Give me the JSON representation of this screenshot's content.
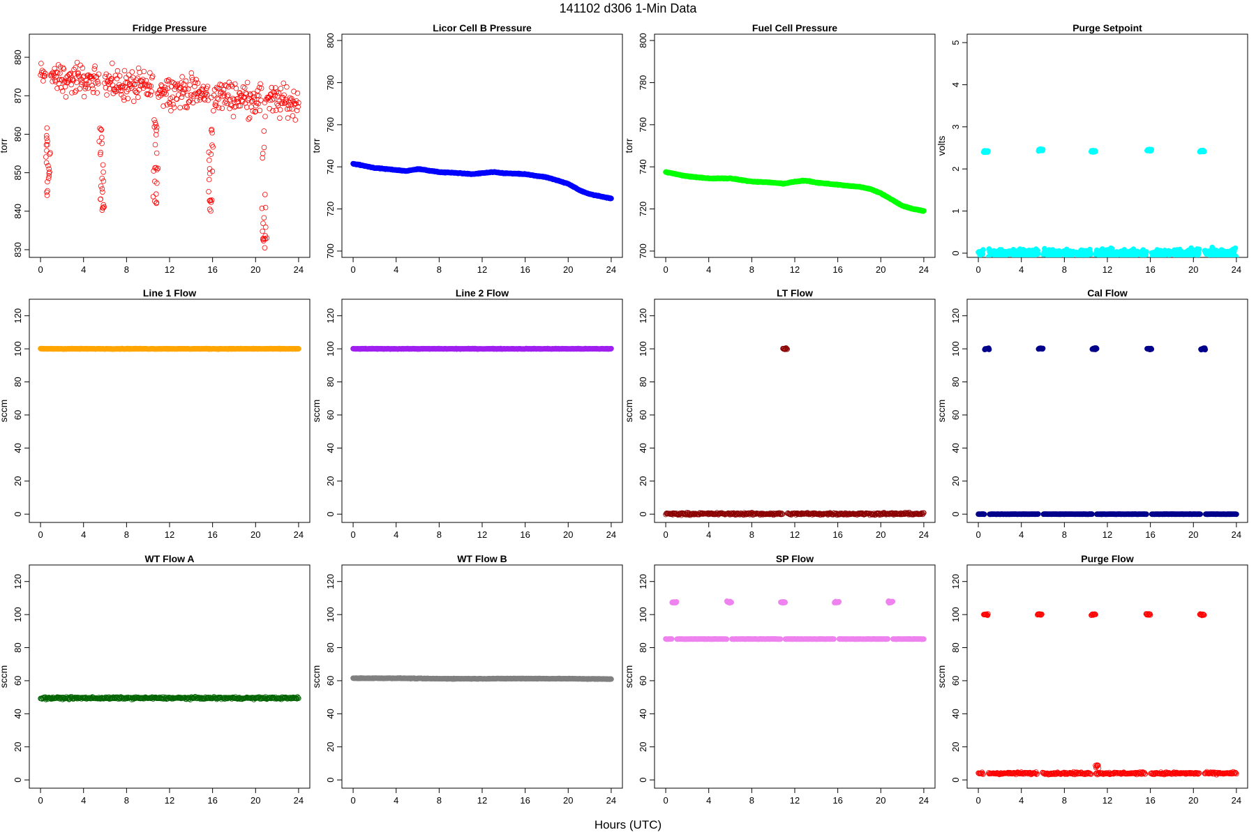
{
  "figure": {
    "title": "141102   d306   1-Min Data",
    "xlabel": "Hours (UTC)"
  },
  "chart_data": [
    {
      "type": "scatter",
      "title": "Fridge Pressure",
      "ylabel": "torr",
      "color": "#ff0000",
      "marker": "open-circle",
      "xlim": [
        0,
        24
      ],
      "ylim": [
        828,
        886
      ],
      "xticks": [
        0,
        4,
        8,
        12,
        16,
        20,
        24
      ],
      "yticks": [
        830,
        840,
        850,
        860,
        870,
        880
      ],
      "grid": false,
      "pattern": {
        "kind": "noisy-band",
        "base_start": 875,
        "base_end": 868,
        "spread": 6,
        "dips": [
          {
            "x": 0.7,
            "min": 843
          },
          {
            "x": 5.7,
            "min": 840
          },
          {
            "x": 10.7,
            "min": 842
          },
          {
            "x": 15.8,
            "min": 840
          },
          {
            "x": 20.8,
            "min": 829
          }
        ]
      }
    },
    {
      "type": "scatter",
      "title": "Licor Cell B Pressure",
      "ylabel": "torr",
      "color": "#0000ff",
      "marker": "filled-circle",
      "xlim": [
        0,
        24
      ],
      "ylim": [
        697,
        803
      ],
      "xticks": [
        0,
        4,
        8,
        12,
        16,
        20,
        24
      ],
      "yticks": [
        700,
        720,
        740,
        760,
        780,
        800
      ],
      "grid": false,
      "x": [
        0,
        2,
        4,
        5,
        6,
        8,
        10,
        11,
        12,
        13,
        14,
        16,
        18,
        20,
        21,
        22,
        24
      ],
      "y": [
        741.5,
        739.5,
        738.5,
        738,
        739,
        737.5,
        737,
        736.5,
        737,
        737.5,
        737,
        736.5,
        735,
        732,
        729,
        727,
        725
      ]
    },
    {
      "type": "scatter",
      "title": "Fuel Cell Pressure",
      "ylabel": "torr",
      "color": "#00ff00",
      "marker": "filled-circle",
      "xlim": [
        0,
        24
      ],
      "ylim": [
        697,
        803
      ],
      "xticks": [
        0,
        4,
        8,
        12,
        16,
        20,
        24
      ],
      "yticks": [
        700,
        720,
        740,
        760,
        780,
        800
      ],
      "grid": false,
      "x": [
        0,
        2,
        4,
        6,
        8,
        10,
        11,
        12,
        13,
        14,
        16,
        18,
        19,
        20,
        21,
        22,
        23,
        24
      ],
      "y": [
        737.5,
        735.5,
        734.5,
        734.5,
        733,
        732.5,
        732,
        733,
        733.5,
        732.5,
        731.5,
        730.5,
        729.5,
        727.5,
        724.5,
        721.5,
        720,
        719
      ]
    },
    {
      "type": "scatter",
      "title": "Purge Setpoint",
      "ylabel": "volts",
      "color": "#00ffff",
      "marker": "filled-circle",
      "xlim": [
        0,
        24
      ],
      "ylim": [
        -0.1,
        5.2
      ],
      "xticks": [
        0,
        4,
        8,
        12,
        16,
        20,
        24
      ],
      "yticks": [
        0,
        1,
        2,
        3,
        4,
        5
      ],
      "grid": false,
      "baseline": 0.0,
      "pulses": [
        {
          "x": 0.7,
          "y": 2.42
        },
        {
          "x": 5.8,
          "y": 2.45
        },
        {
          "x": 10.7,
          "y": 2.42
        },
        {
          "x": 15.9,
          "y": 2.45
        },
        {
          "x": 20.8,
          "y": 2.42
        }
      ]
    },
    {
      "type": "scatter",
      "title": "Line 1 Flow",
      "ylabel": "sccm",
      "color": "#ffa500",
      "marker": "filled-circle",
      "xlim": [
        0,
        24
      ],
      "ylim": [
        -5,
        130
      ],
      "xticks": [
        0,
        4,
        8,
        12,
        16,
        20,
        24
      ],
      "yticks": [
        0,
        20,
        40,
        60,
        80,
        100,
        120
      ],
      "grid": false,
      "x": [
        0,
        24
      ],
      "y": [
        100,
        100
      ]
    },
    {
      "type": "scatter",
      "title": "Line 2 Flow",
      "ylabel": "sccm",
      "color": "#a020f0",
      "marker": "filled-circle",
      "xlim": [
        0,
        24
      ],
      "ylim": [
        -5,
        130
      ],
      "xticks": [
        0,
        4,
        8,
        12,
        16,
        20,
        24
      ],
      "yticks": [
        0,
        20,
        40,
        60,
        80,
        100,
        120
      ],
      "grid": false,
      "x": [
        0,
        24
      ],
      "y": [
        100,
        100
      ]
    },
    {
      "type": "scatter",
      "title": "LT Flow",
      "ylabel": "sccm",
      "color": "#8b0000",
      "marker": "open-circle",
      "xlim": [
        0,
        24
      ],
      "ylim": [
        -5,
        130
      ],
      "xticks": [
        0,
        4,
        8,
        12,
        16,
        20,
        24
      ],
      "yticks": [
        0,
        20,
        40,
        60,
        80,
        100,
        120
      ],
      "grid": false,
      "baseline": 0.2,
      "pulses": [
        {
          "x": 11.1,
          "y": 100
        }
      ]
    },
    {
      "type": "scatter",
      "title": "Cal Flow",
      "ylabel": "sccm",
      "color": "#00008b",
      "marker": "filled-circle",
      "xlim": [
        0,
        24
      ],
      "ylim": [
        -5,
        130
      ],
      "xticks": [
        0,
        4,
        8,
        12,
        16,
        20,
        24
      ],
      "yticks": [
        0,
        20,
        40,
        60,
        80,
        100,
        120
      ],
      "grid": false,
      "baseline": 0.0,
      "pulses": [
        {
          "x": 0.8,
          "y": 100
        },
        {
          "x": 5.8,
          "y": 100
        },
        {
          "x": 10.8,
          "y": 100
        },
        {
          "x": 15.9,
          "y": 100
        },
        {
          "x": 20.9,
          "y": 100
        }
      ]
    },
    {
      "type": "scatter",
      "title": "WT Flow A",
      "ylabel": "sccm",
      "color": "#006400",
      "marker": "open-circle",
      "xlim": [
        0,
        24
      ],
      "ylim": [
        -5,
        130
      ],
      "xticks": [
        0,
        4,
        8,
        12,
        16,
        20,
        24
      ],
      "yticks": [
        0,
        20,
        40,
        60,
        80,
        100,
        120
      ],
      "grid": false,
      "x": [
        0,
        24
      ],
      "y": [
        49.5,
        49.5
      ]
    },
    {
      "type": "scatter",
      "title": "WT Flow B",
      "ylabel": "sccm",
      "color": "#808080",
      "marker": "filled-circle",
      "xlim": [
        0,
        24
      ],
      "ylim": [
        -5,
        130
      ],
      "xticks": [
        0,
        4,
        8,
        12,
        16,
        20,
        24
      ],
      "yticks": [
        0,
        20,
        40,
        60,
        80,
        100,
        120
      ],
      "grid": false,
      "x": [
        0,
        4,
        8,
        12,
        16,
        20,
        24
      ],
      "y": [
        61.5,
        61.5,
        61.2,
        61.2,
        61.3,
        61.2,
        61
      ]
    },
    {
      "type": "scatter",
      "title": "SP Flow",
      "ylabel": "sccm",
      "color": "#ee82ee",
      "marker": "filled-circle",
      "xlim": [
        0,
        24
      ],
      "ylim": [
        -5,
        130
      ],
      "xticks": [
        0,
        4,
        8,
        12,
        16,
        20,
        24
      ],
      "yticks": [
        0,
        20,
        40,
        60,
        80,
        100,
        120
      ],
      "grid": false,
      "baseline": 85.2,
      "pulses": [
        {
          "x": 0.8,
          "y": 107.5
        },
        {
          "x": 5.9,
          "y": 107.5
        },
        {
          "x": 10.9,
          "y": 107.5
        },
        {
          "x": 15.9,
          "y": 107.5
        },
        {
          "x": 20.9,
          "y": 107.5
        }
      ]
    },
    {
      "type": "scatter",
      "title": "Purge Flow",
      "ylabel": "sccm",
      "color": "#ff0000",
      "marker": "open-circle",
      "xlim": [
        0,
        24
      ],
      "ylim": [
        -5,
        130
      ],
      "xticks": [
        0,
        4,
        8,
        12,
        16,
        20,
        24
      ],
      "yticks": [
        0,
        20,
        40,
        60,
        80,
        100,
        120
      ],
      "grid": false,
      "baseline": 4.0,
      "pulses": [
        {
          "x": 0.7,
          "y": 100
        },
        {
          "x": 5.7,
          "y": 100
        },
        {
          "x": 10.7,
          "y": 100
        },
        {
          "x": 15.8,
          "y": 100
        },
        {
          "x": 20.8,
          "y": 100
        }
      ]
    }
  ]
}
